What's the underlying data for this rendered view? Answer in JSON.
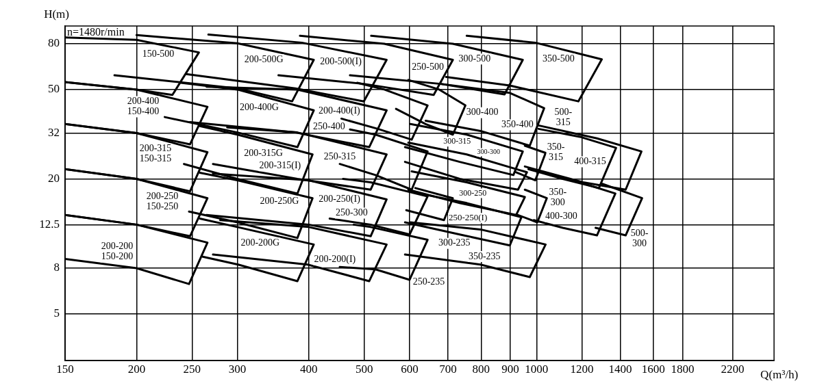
{
  "chart_data": {
    "type": "line",
    "xlabel": "Q(m³/h)",
    "ylabel": "H(m)",
    "annotations": [
      "n=1480r/min"
    ],
    "log": "xy",
    "xlim": [
      150,
      2600
    ],
    "ylim": [
      3.1,
      96
    ],
    "xticks": [
      150,
      200,
      250,
      300,
      400,
      500,
      600,
      700,
      800,
      900,
      1000,
      1200,
      1400,
      1600,
      1800,
      2200
    ],
    "yticks": [
      5,
      8,
      12.5,
      20,
      32,
      50,
      80
    ],
    "grid": true,
    "legend": false,
    "marker": "none",
    "series": [
      {
        "name": "150-500",
        "color": "#000000",
        "x": [
          150,
          200,
          257,
          231,
          200,
          150
        ],
        "values": [
          85.3,
          83.3,
          73.2,
          47.3,
          50,
          54.0
        ]
      },
      {
        "name": "200-400\n150-400",
        "color": "#000000",
        "x": [
          150,
          200,
          266,
          248,
          200,
          150
        ],
        "values": [
          54.0,
          50,
          41.9,
          28.5,
          32,
          35.1
        ]
      },
      {
        "name": "200-315\n150-315",
        "color": "#000000",
        "x": [
          150,
          200,
          266,
          248,
          200,
          150
        ],
        "values": [
          35.1,
          32,
          26.3,
          17.6,
          20,
          22.1
        ]
      },
      {
        "name": "200-250\n150-250",
        "color": "#000000",
        "x": [
          150,
          200,
          266,
          248,
          200,
          150
        ],
        "values": [
          22.1,
          20,
          16.4,
          11.1,
          12.5,
          13.8
        ]
      },
      {
        "name": "200-200\n150-200",
        "color": "#000000",
        "x": [
          150,
          200,
          266,
          247,
          200,
          150
        ],
        "values": [
          13.8,
          12.5,
          10.4,
          6.8,
          8,
          8.8
        ]
      },
      {
        "name": "200-500G",
        "color": "#000000",
        "x": [
          200,
          300,
          408,
          374,
          300,
          183
        ],
        "values": [
          87.4,
          80.4,
          67.8,
          44.3,
          50.6,
          57.9
        ]
      },
      {
        "name": "200-500(I)",
        "color": "#000000",
        "x": [
          267,
          389,
          547,
          499,
          379,
          244
        ],
        "values": [
          87.9,
          80.9,
          67.8,
          44.3,
          50.6,
          58.6
        ]
      },
      {
        "name": "250-500",
        "color": "#000000",
        "x": [
          386,
          542,
          714,
          661,
          499,
          354
        ],
        "values": [
          86.8,
          80,
          67.8,
          47.3,
          53.0,
          57.9
        ]
      },
      {
        "name": "300-500",
        "color": "#000000",
        "x": [
          514,
          714,
          946,
          879,
          680,
          472
        ],
        "values": [
          86.8,
          80,
          67.8,
          47.6,
          53.0,
          57.9
        ]
      },
      {
        "name": "350-500",
        "color": "#000000",
        "x": [
          755,
          995,
          1300,
          1183,
          898,
          695
        ],
        "values": [
          86.8,
          80.9,
          68.2,
          44.3,
          52.1,
          56.9
        ]
      },
      {
        "name": "200-400G",
        "color": "#000000",
        "x": [
          239,
          300,
          408,
          382,
          300,
          224
        ],
        "values": [
          53.6,
          50,
          40.4,
          27.7,
          32.2,
          37.7
        ]
      },
      {
        "name": "200-400(I)",
        "color": "#000000",
        "x": [
          265,
          382,
          547,
          510,
          379,
          248
        ],
        "values": [
          51.5,
          50,
          40.4,
          27.7,
          32.2,
          35.8
        ]
      },
      {
        "name": "250-400",
        "color": "#000000",
        "x": [
          486,
          542,
          645,
          605,
          528,
          456
        ],
        "values": [
          53.6,
          50,
          42.5,
          29.9,
          33.4,
          37.1
        ]
      },
      {
        "name": "300-400",
        "color": "#000000",
        "x": [
          597,
          676,
          751,
          714,
          640,
          568
        ],
        "values": [
          55.2,
          50,
          42.5,
          31.5,
          35.1,
          41.0
        ]
      },
      {
        "name": "350-400",
        "color": "#000000",
        "x": [
          680,
          898,
          1031,
          973,
          798,
          640
        ],
        "values": [
          53.0,
          48.3,
          41.3,
          28.1,
          32.7,
          36.3
        ]
      },
      {
        "name": "200-315G",
        "color": "#000000",
        "x": [
          258,
          300,
          406,
          382,
          300,
          242
        ],
        "values": [
          34.4,
          31.5,
          25.7,
          17.2,
          20,
          23.3
        ]
      },
      {
        "name": "200-315(I)",
        "color": "#000000",
        "x": [
          288,
          382,
          547,
          513,
          382,
          272
        ],
        "values": [
          33.9,
          32.2,
          25.7,
          17.9,
          20,
          23.3
        ]
      },
      {
        "name": "250-315",
        "color": "#000000",
        "x": [
          472,
          523,
          645,
          605,
          523,
          453
        ],
        "values": [
          33.2,
          31.5,
          26.5,
          17.9,
          20.8,
          23.3
        ]
      },
      {
        "name": "300-315",
        "color": "#000000",
        "x": [
          602,
          755,
          946,
          911,
          734,
          589
        ],
        "values": [
          35.1,
          31.5,
          26.5,
          20.8,
          23.8,
          27.7
        ]
      },
      {
        "name": "300-300",
        "color": "#000000",
        "x": [
          597,
          755,
          962,
          928,
          734,
          589
        ],
        "values": [
          29.0,
          25.7,
          21.4,
          17.9,
          20,
          23.8
        ]
      },
      {
        "name": "350-\n315",
        "color": "#000000",
        "x": [
          954,
          1037,
          995,
          921
        ],
        "values": [
          28.1,
          26.1,
          19.7,
          21.4
        ]
      },
      {
        "name": "400-315",
        "color": "#000000",
        "x": [
          1008,
          1190,
          1377,
          1285,
          1111,
          968
        ],
        "values": [
          33.4,
          30.8,
          27.5,
          18.2,
          20,
          22.1
        ]
      },
      {
        "name": "500-\n315",
        "color": "#000000",
        "x": [
          1008,
          1275,
          1525,
          1431,
          1206,
          954
        ],
        "values": [
          34.6,
          30.3,
          26.5,
          17.9,
          19.3,
          22.7
        ]
      },
      {
        "name": "200-250G",
        "color": "#000000",
        "x": [
          258,
          300,
          406,
          382,
          300,
          247
        ],
        "values": [
          21.3,
          19.7,
          16.4,
          10.9,
          12.8,
          14.3
        ]
      },
      {
        "name": "200-250(I)",
        "color": "#000000",
        "x": [
          272,
          400,
          547,
          513,
          400,
          265
        ],
        "values": [
          21.1,
          19.7,
          16.2,
          11.1,
          12.5,
          13.8
        ]
      },
      {
        "name": "250-300",
        "color": "#000000",
        "x": [
          459,
          513,
          645,
          600,
          513,
          435
        ],
        "values": [
          20,
          19.3,
          16.7,
          11.3,
          12.5,
          13.3
        ]
      },
      {
        "name": "250-250(I)",
        "color": "#000000",
        "x": [
          614,
          714,
          689,
          592
        ],
        "values": [
          18.2,
          16.4,
          13.1,
          14.5
        ]
      },
      {
        "name": "300-250",
        "color": "#000000",
        "x": [
          605,
          755,
          954,
          921,
          734,
          597
        ],
        "values": [
          21.6,
          19.3,
          16.6,
          13.8,
          15.6,
          17.9
        ]
      },
      {
        "name": "300-235",
        "color": "#000000",
        "x": [
          597,
          755,
          941,
          898,
          734,
          589
        ],
        "values": [
          17.6,
          15.6,
          13.5,
          10.1,
          11.3,
          12.8
        ]
      },
      {
        "name": "350-\n300",
        "color": "#000000",
        "x": [
          954,
          1042,
          1003,
          928
        ],
        "values": [
          17.9,
          16.4,
          12.8,
          13.8
        ]
      },
      {
        "name": "400-300",
        "color": "#000000",
        "x": [
          1008,
          1190,
          1373,
          1275,
          1111,
          989
        ],
        "values": [
          21.6,
          19.3,
          17.2,
          11.2,
          12.1,
          13.1
        ]
      },
      {
        "name": "500-\n300",
        "color": "#000000",
        "x": [
          1303,
          1529,
          1431,
          1268
        ],
        "values": [
          19.0,
          16.4,
          11.2,
          12.1
        ]
      },
      {
        "name": "200-200G",
        "color": "#000000",
        "x": [
          258,
          300,
          408,
          382,
          301,
          261
        ],
        "values": [
          13.3,
          12.2,
          10.2,
          7.0,
          8.3,
          9.0
        ]
      },
      {
        "name": "200-200(I)",
        "color": "#000000",
        "x": [
          280,
          400,
          547,
          510,
          398,
          272
        ],
        "values": [
          13.1,
          12.2,
          10.2,
          7.0,
          8.3,
          9.2
        ]
      },
      {
        "name": "250-235",
        "color": "#000000",
        "x": [
          479,
          513,
          645,
          600,
          523,
          453
        ],
        "values": [
          12.5,
          12.2,
          10.7,
          7.1,
          7.9,
          8.1
        ]
      },
      {
        "name": "350-235",
        "color": "#000000",
        "x": [
          602,
          798,
          1037,
          973,
          798,
          589
        ],
        "values": [
          12.8,
          11.9,
          10.2,
          7.3,
          8.3,
          9.2
        ]
      }
    ]
  }
}
